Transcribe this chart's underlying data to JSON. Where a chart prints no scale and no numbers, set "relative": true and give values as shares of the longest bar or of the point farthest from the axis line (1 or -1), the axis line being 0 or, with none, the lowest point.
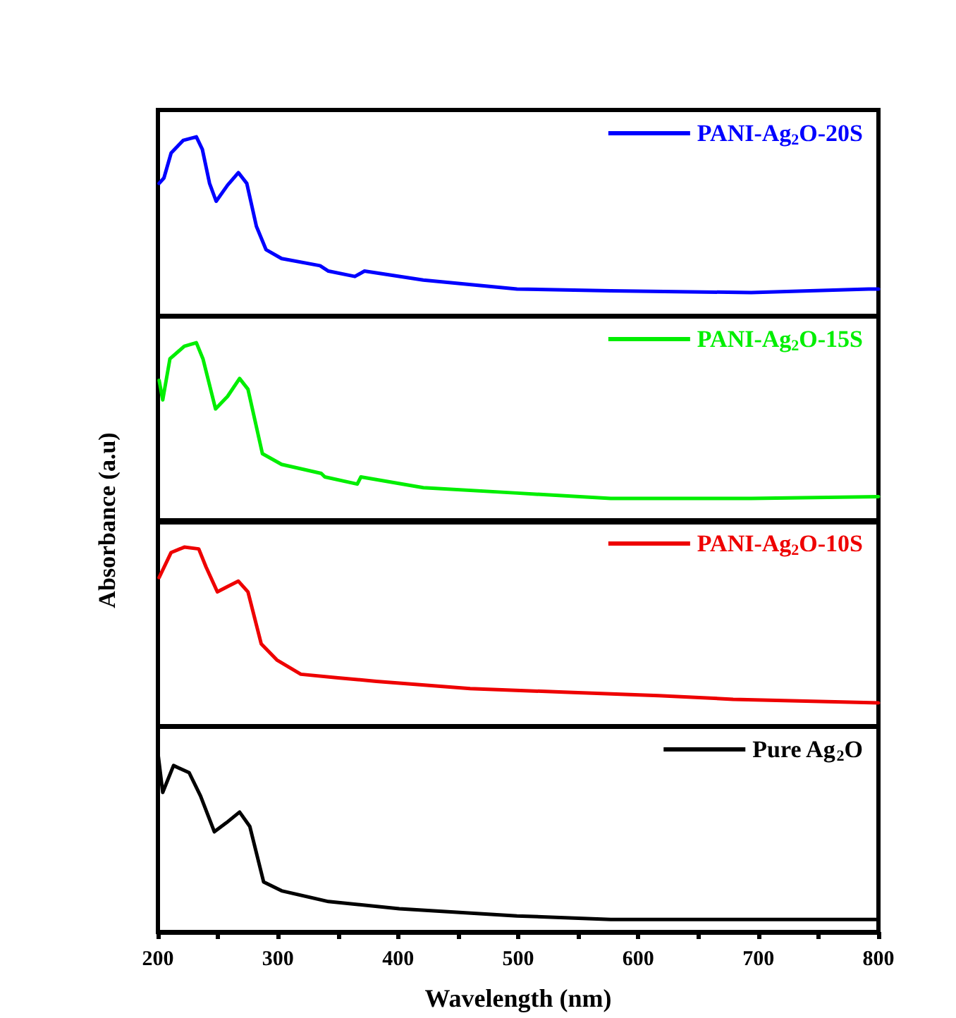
{
  "chart_data": [
    {
      "type": "line",
      "relative": true,
      "xlim": [
        200,
        800
      ],
      "tick_labels": false,
      "legend": "top right",
      "series": [
        {
          "name": "PANI-Ag$_{2}$O-20S",
          "color": "#0000ff",
          "x": [
            201,
            205,
            211,
            221,
            232,
            237,
            243,
            248.5,
            258,
            267,
            274,
            282,
            290,
            303,
            335,
            342,
            364,
            372,
            421,
            499,
            577,
            694,
            792,
            800
          ],
          "values": [
            0.74,
            0.77,
            0.91,
            0.98,
            1.0,
            0.93,
            0.74,
            0.64,
            0.73,
            0.8,
            0.74,
            0.5,
            0.37,
            0.32,
            0.28,
            0.25,
            0.22,
            0.25,
            0.2,
            0.15,
            0.14,
            0.13,
            0.15,
            0.15
          ]
        }
      ]
    },
    {
      "type": "line",
      "relative": true,
      "xlim": [
        200,
        800
      ],
      "tick_labels": false,
      "legend": "top right",
      "ylabel": "Absorbance (a.u)",
      "series": [
        {
          "name": "PANI-Ag$_{2}$O-15S",
          "color": "#00ee00",
          "x": [
            201,
            204,
            210,
            222,
            232,
            237.5,
            248,
            258,
            268,
            275,
            287,
            303,
            336,
            339,
            366,
            369,
            421,
            499,
            577,
            694,
            800
          ],
          "values": [
            0.79,
            0.68,
            0.91,
            0.98,
            1.0,
            0.91,
            0.63,
            0.7,
            0.8,
            0.74,
            0.38,
            0.32,
            0.27,
            0.25,
            0.21,
            0.25,
            0.19,
            0.16,
            0.13,
            0.13,
            0.14
          ]
        }
      ]
    },
    {
      "type": "line",
      "relative": true,
      "xlim": [
        200,
        800
      ],
      "tick_labels": false,
      "legend": "top right",
      "series": [
        {
          "name": "PANI-Ag$_{2}$O-10S",
          "color": "#ee0000",
          "x": [
            201,
            211,
            222,
            234,
            240,
            249.5,
            258,
            267,
            275,
            286,
            299,
            319,
            350,
            382,
            460,
            538,
            617,
            679,
            800
          ],
          "values": [
            0.83,
            0.97,
            1.0,
            0.99,
            0.89,
            0.75,
            0.78,
            0.81,
            0.75,
            0.46,
            0.37,
            0.29,
            0.27,
            0.25,
            0.21,
            0.19,
            0.17,
            0.15,
            0.13
          ]
        }
      ]
    },
    {
      "type": "line",
      "relative": true,
      "xlim": [
        200,
        800
      ],
      "tick_labels": "x",
      "legend": "top right",
      "xlabel": "Wavelength (nm)",
      "xticks": [
        200,
        {
          "value": 250,
          "label": null
        },
        300,
        {
          "value": 350,
          "label": null
        },
        400,
        {
          "value": 450,
          "label": null
        },
        500,
        {
          "value": 550,
          "label": null
        },
        600,
        {
          "value": 650,
          "label": null
        },
        700,
        {
          "value": 750,
          "label": null
        },
        800
      ],
      "series": [
        {
          "name": "Pure Ag$_{2}$O",
          "color": "#000000",
          "x": [
            200,
            204,
            213,
            226,
            235.5,
            247,
            257,
            268,
            276.5,
            288,
            303,
            342,
            401,
            499,
            577,
            694,
            800
          ],
          "values": [
            1.0,
            0.78,
            0.93,
            0.89,
            0.76,
            0.56,
            0.61,
            0.67,
            0.59,
            0.28,
            0.23,
            0.17,
            0.13,
            0.09,
            0.07,
            0.07,
            0.07
          ]
        }
      ]
    }
  ]
}
